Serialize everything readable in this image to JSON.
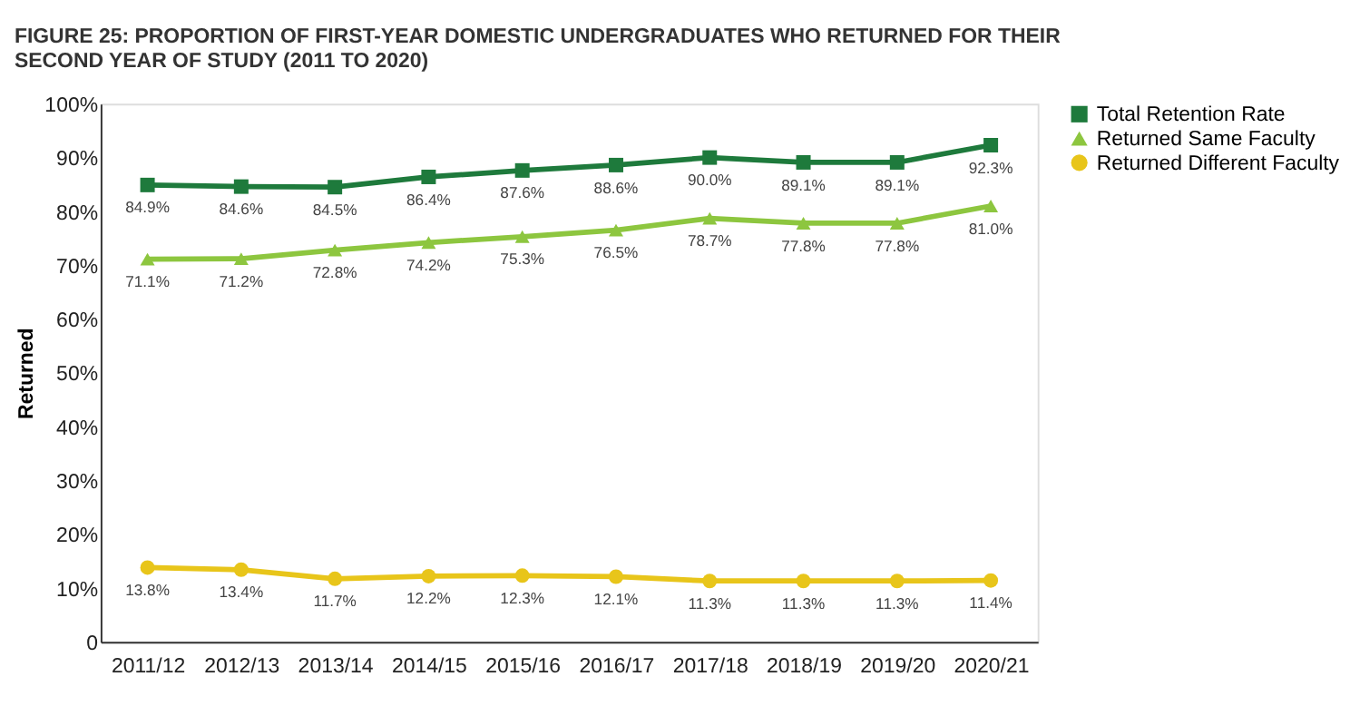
{
  "chart_data": {
    "type": "line",
    "title": "FIGURE 25: PROPORTION OF FIRST-YEAR DOMESTIC UNDERGRADUATES WHO RETURNED FOR THEIR SECOND YEAR OF STUDY (2011 TO 2020)",
    "ylabel": "Returned",
    "categories": [
      "2011/12",
      "2012/13",
      "2013/14",
      "2014/15",
      "2015/16",
      "2016/17",
      "2017/18",
      "2018/19",
      "2019/20",
      "2020/21"
    ],
    "series": [
      {
        "name": "Total Retention Rate",
        "color": "#1e7a3c",
        "marker": "square",
        "values": [
          84.9,
          84.6,
          84.5,
          86.4,
          87.6,
          88.6,
          90.0,
          89.1,
          89.1,
          92.3
        ],
        "value_labels": [
          "84.9%",
          "84.6%",
          "84.5%",
          "86.4%",
          "87.6%",
          "88.6%",
          "90.0%",
          "89.1%",
          "89.1%",
          "92.3%"
        ]
      },
      {
        "name": "Returned Same Faculty",
        "color": "#8dc63f",
        "marker": "triangle",
        "values": [
          71.1,
          71.2,
          72.8,
          74.2,
          75.3,
          76.5,
          78.7,
          77.8,
          77.8,
          81.0
        ],
        "value_labels": [
          "71.1%",
          "71.2%",
          "72.8%",
          "74.2%",
          "75.3%",
          "76.5%",
          "78.7%",
          "77.8%",
          "77.8%",
          "81.0%"
        ]
      },
      {
        "name": "Returned Different Faculty",
        "color": "#e8c51a",
        "marker": "circle",
        "values": [
          13.8,
          13.4,
          11.7,
          12.2,
          12.3,
          12.1,
          11.3,
          11.3,
          11.3,
          11.4
        ],
        "value_labels": [
          "13.8%",
          "13.4%",
          "11.7%",
          "12.2%",
          "12.3%",
          "12.1%",
          "11.3%",
          "11.3%",
          "11.3%",
          "11.4%"
        ]
      }
    ],
    "ylim": [
      0,
      100
    ],
    "yticks": [
      0,
      {
        "value": 10,
        "label": "10%"
      },
      {
        "value": 20,
        "label": "20%"
      },
      {
        "value": 30,
        "label": "30%"
      },
      {
        "value": 40,
        "label": "40%"
      },
      {
        "value": 50,
        "label": "50%"
      },
      {
        "value": 60,
        "label": "60%"
      },
      {
        "value": 70,
        "label": "70%"
      },
      {
        "value": 80,
        "label": "80%"
      },
      {
        "value": 90,
        "label": "90%"
      },
      {
        "value": 100,
        "label": "100%"
      }
    ],
    "grid": false,
    "legend": "top right",
    "line_style": "solid"
  }
}
